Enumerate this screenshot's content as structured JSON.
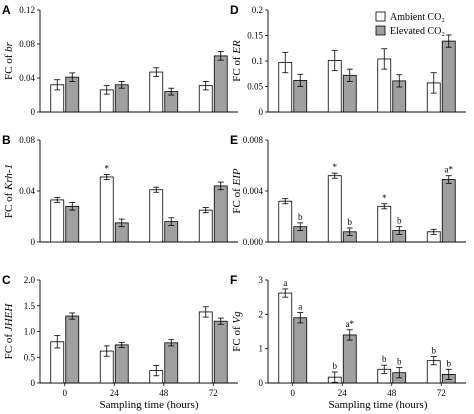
{
  "figure": {
    "xlabel": "Sampling time (hours)",
    "legend": [
      {
        "label": "Ambient CO₂",
        "color": "#ffffff"
      },
      {
        "label": "Elevated CO₂",
        "color": "#a0a0a0"
      }
    ]
  },
  "chart_data": [
    {
      "panel": "A",
      "type": "bar",
      "ylabel_prefix": "FC of ",
      "ylabel_gene": "br",
      "categories": [
        "0",
        "24",
        "48",
        "72"
      ],
      "ylim": [
        0,
        0.12
      ],
      "yticks": [
        "0",
        "0.04",
        "0.08",
        "0.12"
      ],
      "ytick_values": [
        0,
        0.04,
        0.08,
        0.12
      ],
      "show_xticks": false,
      "series": [
        {
          "name": "Ambient CO₂",
          "values": [
            0.032,
            0.026,
            0.047,
            0.031
          ],
          "errors": [
            0.006,
            0.005,
            0.005,
            0.005
          ]
        },
        {
          "name": "Elevated CO₂",
          "values": [
            0.041,
            0.032,
            0.024,
            0.066
          ],
          "errors": [
            0.005,
            0.004,
            0.004,
            0.005
          ]
        }
      ],
      "annotations": []
    },
    {
      "panel": "D",
      "type": "bar",
      "ylabel_prefix": "FC of ",
      "ylabel_gene": "ER",
      "categories": [
        "0",
        "24",
        "48",
        "72"
      ],
      "ylim": [
        0,
        0.2
      ],
      "yticks": [
        "0",
        "0.05",
        "0.1",
        "0.15",
        "0.2"
      ],
      "ytick_values": [
        0,
        0.05,
        0.1,
        0.15,
        0.2
      ],
      "show_xticks": false,
      "series": [
        {
          "name": "Ambient CO₂",
          "values": [
            0.097,
            0.101,
            0.104,
            0.057
          ],
          "errors": [
            0.02,
            0.02,
            0.02,
            0.02
          ]
        },
        {
          "name": "Elevated CO₂",
          "values": [
            0.062,
            0.072,
            0.061,
            0.139
          ],
          "errors": [
            0.012,
            0.012,
            0.012,
            0.012
          ]
        }
      ],
      "annotations": []
    },
    {
      "panel": "B",
      "type": "bar",
      "ylabel_prefix": "FC of ",
      "ylabel_gene": "Krh-1",
      "categories": [
        "0",
        "24",
        "48",
        "72"
      ],
      "ylim": [
        0,
        0.08
      ],
      "yticks": [
        "0",
        "0.04",
        "0.08"
      ],
      "ytick_values": [
        0,
        0.04,
        0.08
      ],
      "show_xticks": false,
      "series": [
        {
          "name": "Ambient CO₂",
          "values": [
            0.033,
            0.051,
            0.041,
            0.025
          ],
          "errors": [
            0.002,
            0.002,
            0.002,
            0.002
          ]
        },
        {
          "name": "Elevated CO₂",
          "values": [
            0.028,
            0.015,
            0.016,
            0.044
          ],
          "errors": [
            0.003,
            0.003,
            0.003,
            0.003
          ]
        }
      ],
      "annotations": [
        {
          "text": "*",
          "series": 0,
          "index": 1
        }
      ]
    },
    {
      "panel": "E",
      "type": "bar",
      "ylabel_prefix": "FC of ",
      "ylabel_gene": "EIP",
      "categories": [
        "0",
        "24",
        "48",
        "72"
      ],
      "ylim": [
        0,
        0.008
      ],
      "yticks": [
        "0.000",
        "0.004",
        "0.008"
      ],
      "ytick_values": [
        0,
        0.004,
        0.008
      ],
      "show_xticks": false,
      "series": [
        {
          "name": "Ambient CO₂",
          "values": [
            0.0032,
            0.0052,
            0.0028,
            0.0008
          ],
          "errors": [
            0.0002,
            0.0002,
            0.0002,
            0.0002
          ]
        },
        {
          "name": "Elevated CO₂",
          "values": [
            0.0012,
            0.0008,
            0.0009,
            0.0049
          ],
          "errors": [
            0.0003,
            0.0003,
            0.0003,
            0.0003
          ]
        }
      ],
      "annotations": [
        {
          "text": "b",
          "series": 1,
          "index": 0
        },
        {
          "text": "*",
          "series": 0,
          "index": 1
        },
        {
          "text": "b",
          "series": 1,
          "index": 1
        },
        {
          "text": "*",
          "series": 0,
          "index": 2
        },
        {
          "text": "b",
          "series": 1,
          "index": 2
        },
        {
          "text": "a*",
          "series": 1,
          "index": 3
        }
      ]
    },
    {
      "panel": "C",
      "type": "bar",
      "ylabel_prefix": "FC of ",
      "ylabel_gene": "JHEH",
      "categories": [
        "0",
        "24",
        "48",
        "72"
      ],
      "ylim": [
        0,
        2.0
      ],
      "yticks": [
        "0",
        "0.5",
        "1.0",
        "1.5",
        "2.0"
      ],
      "ytick_values": [
        0,
        0.5,
        1.0,
        1.5,
        2.0
      ],
      "show_xticks": true,
      "series": [
        {
          "name": "Ambient CO₂",
          "values": [
            0.8,
            0.62,
            0.24,
            1.38
          ],
          "errors": [
            0.12,
            0.1,
            0.1,
            0.1
          ]
        },
        {
          "name": "Elevated CO₂",
          "values": [
            1.3,
            0.74,
            0.78,
            1.2
          ],
          "errors": [
            0.06,
            0.05,
            0.06,
            0.06
          ]
        }
      ],
      "annotations": []
    },
    {
      "panel": "F",
      "type": "bar",
      "ylabel_prefix": "FC of ",
      "ylabel_gene": "Vg",
      "categories": [
        "0",
        "24",
        "48",
        "72"
      ],
      "ylim": [
        0,
        3
      ],
      "yticks": [
        "0",
        "1",
        "2",
        "3"
      ],
      "ytick_values": [
        0,
        1,
        2,
        3
      ],
      "show_xticks": true,
      "series": [
        {
          "name": "Ambient CO₂",
          "values": [
            2.62,
            0.17,
            0.4,
            0.65
          ],
          "errors": [
            0.12,
            0.15,
            0.12,
            0.12
          ]
        },
        {
          "name": "Elevated CO₂",
          "values": [
            1.9,
            1.4,
            0.3,
            0.25
          ],
          "errors": [
            0.15,
            0.15,
            0.15,
            0.15
          ]
        }
      ],
      "annotations": [
        {
          "text": "a",
          "series": 0,
          "index": 0
        },
        {
          "text": "a",
          "series": 1,
          "index": 0
        },
        {
          "text": "b",
          "series": 0,
          "index": 1
        },
        {
          "text": "a*",
          "series": 1,
          "index": 1
        },
        {
          "text": "b",
          "series": 0,
          "index": 2
        },
        {
          "text": "b",
          "series": 1,
          "index": 2
        },
        {
          "text": "b",
          "series": 0,
          "index": 3
        },
        {
          "text": "b",
          "series": 1,
          "index": 3
        }
      ]
    }
  ]
}
